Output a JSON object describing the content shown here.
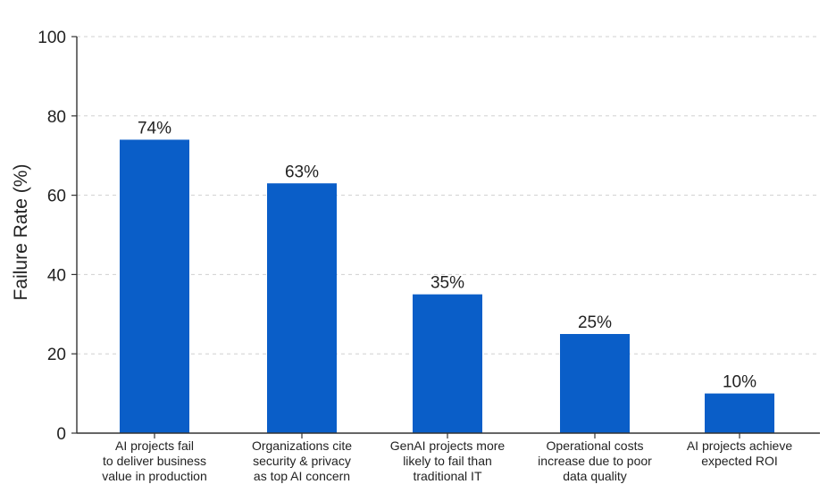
{
  "chart_data": {
    "type": "bar",
    "title": "",
    "xlabel": "",
    "ylabel": "Failure Rate (%)",
    "ylim": [
      0,
      100
    ],
    "yticks": [
      0,
      20,
      40,
      60,
      80,
      100
    ],
    "grid": true,
    "bar_color": "#0a5ec8",
    "categories": [
      [
        "AI projects fail",
        "to deliver business",
        "value in production"
      ],
      [
        "Organizations cite",
        "security & privacy",
        "as top AI concern"
      ],
      [
        "GenAI projects more",
        "likely to fail than",
        "traditional IT"
      ],
      [
        "Operational costs",
        "increase due to poor",
        "data quality"
      ],
      [
        "AI projects achieve",
        "expected ROI"
      ]
    ],
    "values": [
      74,
      63,
      35,
      25,
      10
    ],
    "data_labels": [
      "74%",
      "63%",
      "35%",
      "25%",
      "10%"
    ]
  }
}
